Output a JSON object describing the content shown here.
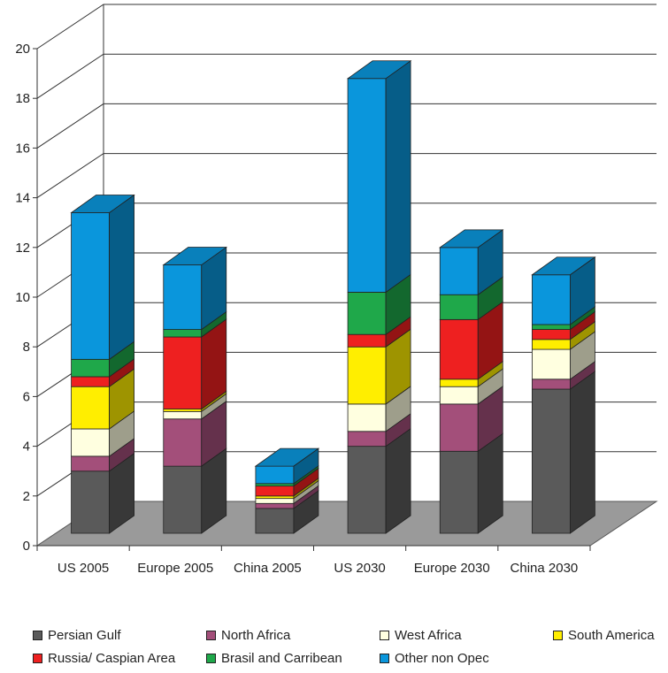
{
  "chart_data": {
    "type": "bar",
    "stacked": true,
    "three_d": true,
    "categories": [
      "US 2005",
      "Europe 2005",
      "China 2005",
      "US 2030",
      "Europe 2030",
      "China 2030"
    ],
    "ylim": [
      0,
      20
    ],
    "yticks": [
      "0",
      "2",
      "4",
      "6",
      "8",
      "10",
      "12",
      "14",
      "16",
      "18",
      "20"
    ],
    "grid": true,
    "legend_position": "bottom",
    "series": [
      {
        "name": "Persian Gulf",
        "color": "#5a5a5a",
        "values": [
          2.5,
          2.7,
          1.0,
          3.5,
          3.3,
          5.8
        ]
      },
      {
        "name": "North Africa",
        "color": "#a34f7a",
        "values": [
          0.6,
          1.9,
          0.2,
          0.6,
          1.9,
          0.4
        ]
      },
      {
        "name": "West Africa",
        "color": "#ffffe0",
        "values": [
          1.1,
          0.3,
          0.2,
          1.1,
          0.7,
          1.2
        ]
      },
      {
        "name": "South America",
        "color": "#ffee00",
        "values": [
          1.7,
          0.1,
          0.1,
          2.3,
          0.3,
          0.4
        ]
      },
      {
        "name": "Russia/ Caspian Area",
        "color": "#ee2020",
        "values": [
          0.4,
          2.9,
          0.4,
          0.5,
          2.4,
          0.4
        ]
      },
      {
        "name": "Brasil and Carribean",
        "color": "#1fa84a",
        "values": [
          0.7,
          0.3,
          0.1,
          1.7,
          1.0,
          0.2
        ]
      },
      {
        "name": "Other non Opec",
        "color": "#0a96dc",
        "values": [
          5.9,
          2.6,
          0.7,
          8.6,
          1.9,
          2.0
        ]
      }
    ]
  }
}
